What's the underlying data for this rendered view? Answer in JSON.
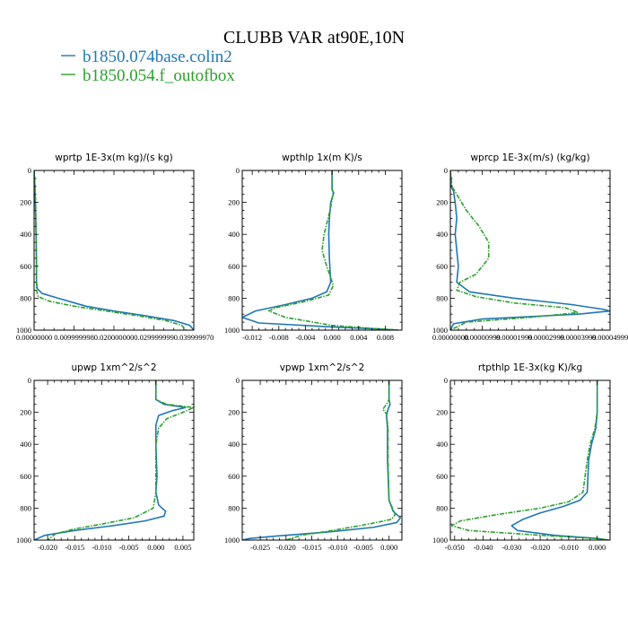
{
  "title": "CLUBB VAR at90E,10N",
  "legend": [
    {
      "label": "b1850.074base.colin2",
      "color": "#1f77b4"
    },
    {
      "label": "b1850.054.f_outofbox",
      "color": "#2ca02c"
    }
  ],
  "chart_data": [
    {
      "type": "line",
      "title": "wprtp   1E-3x(m kg)/(s kg)",
      "xlim": [
        0.0,
        0.04
      ],
      "xticks": [
        0.0,
        0.01,
        0.02,
        0.03,
        0.04
      ],
      "xtick_labels": [
        "0.00000000",
        "0.009999998",
        "0.020000000",
        "0.029999999",
        "0.039999970"
      ],
      "ylim": [
        0,
        1000
      ],
      "yticks": [
        0,
        200,
        400,
        600,
        800,
        1000
      ],
      "y_reversed": true,
      "series": [
        {
          "name": "b1850.074base.colin2",
          "color": "#1f77b4",
          "dashed": false,
          "x": [
            0.0,
            0.0002,
            0.0003,
            0.0005,
            0.0006,
            0.0006,
            0.0008,
            0.002,
            0.006,
            0.013,
            0.02,
            0.028,
            0.035,
            0.039,
            0.04
          ],
          "y": [
            0,
            100,
            200,
            400,
            600,
            700,
            740,
            770,
            800,
            850,
            880,
            910,
            940,
            970,
            1000
          ]
        },
        {
          "name": "b1850.054.f_outofbox",
          "color": "#2ca02c",
          "dashed": true,
          "x": [
            0.0,
            0.0002,
            0.0004,
            0.0005,
            0.0006,
            0.0006,
            0.001,
            0.004,
            0.01,
            0.018,
            0.026,
            0.033,
            0.037,
            0.038
          ],
          "y": [
            0,
            100,
            200,
            400,
            600,
            750,
            790,
            820,
            850,
            880,
            910,
            940,
            970,
            1000
          ]
        }
      ]
    },
    {
      "type": "line",
      "title": "wpthlp   1x(m K)/s",
      "xlim": [
        -0.0135,
        0.0105
      ],
      "xticks": [
        -0.012,
        -0.008,
        -0.004,
        0.0,
        0.004,
        0.008
      ],
      "xtick_labels": [
        "-0.012",
        "-0.008",
        "-0.004",
        "0.000",
        "0.004",
        "0.008"
      ],
      "ylim": [
        0,
        1000
      ],
      "yticks": [
        0,
        200,
        400,
        600,
        800,
        1000
      ],
      "y_reversed": true,
      "series": [
        {
          "name": "b1850.074base.colin2",
          "color": "#1f77b4",
          "dashed": false,
          "x": [
            0.0,
            0.0,
            0.0002,
            0.0001,
            -0.0002,
            -0.0004,
            -0.0005,
            -0.0004,
            -0.0002,
            -0.0008,
            -0.003,
            -0.007,
            -0.0115,
            -0.0135,
            -0.011,
            0.0,
            0.008,
            0.01
          ],
          "y": [
            0,
            120,
            140,
            160,
            200,
            300,
            400,
            550,
            700,
            760,
            800,
            840,
            880,
            920,
            955,
            980,
            995,
            1000
          ]
        },
        {
          "name": "b1850.054.f_outofbox",
          "color": "#2ca02c",
          "dashed": true,
          "x": [
            0.0,
            0.0,
            0.0003,
            0.0001,
            -0.0003,
            -0.0012,
            -0.0015,
            -0.0008,
            0.0002,
            -0.0005,
            -0.004,
            -0.0085,
            -0.0095,
            -0.007,
            0.0,
            0.008,
            0.01
          ],
          "y": [
            0,
            120,
            140,
            160,
            250,
            400,
            500,
            600,
            720,
            780,
            820,
            860,
            880,
            920,
            970,
            995,
            1000
          ]
        }
      ]
    },
    {
      "type": "line",
      "title": "wprcp   1E-3x(m/s) (kg/kg)",
      "xlim": [
        0.0,
        5e-05
      ],
      "xticks": [
        0.0,
        1e-05,
        2e-05,
        3e-05,
        4e-05,
        5e-05
      ],
      "xtick_labels": [
        "0.00000000",
        "0.00000999",
        "0.00001999",
        "0.00002999",
        "0.00003999",
        "0.00004999"
      ],
      "ylim": [
        0,
        1000
      ],
      "yticks": [
        0,
        200,
        400,
        600,
        800,
        1000
      ],
      "y_reversed": true,
      "series": [
        {
          "name": "b1850.074base.colin2",
          "color": "#1f77b4",
          "dashed": false,
          "x": [
            0.0,
            2e-07,
            1e-06,
            1.5e-06,
            2e-06,
            1.5e-06,
            2e-06,
            2.5e-06,
            2e-06,
            6e-06,
            2e-05,
            3.8e-05,
            4.8e-05,
            5e-05,
            4e-05,
            1e-05,
            1e-06,
            0.0
          ],
          "y": [
            0,
            100,
            130,
            200,
            300,
            400,
            500,
            600,
            700,
            760,
            800,
            840,
            870,
            880,
            900,
            930,
            960,
            1000
          ]
        },
        {
          "name": "b1850.054.f_outofbox",
          "color": "#2ca02c",
          "dashed": true,
          "x": [
            0.0,
            5e-07,
            2e-06,
            5e-06,
            9e-06,
            1.2e-05,
            1.2e-05,
            8e-06,
            3e-06,
            2e-06,
            8e-06,
            2e-05,
            3.6e-05,
            4e-05,
            2.5e-05,
            5e-06,
            0.0
          ],
          "y": [
            0,
            100,
            150,
            250,
            350,
            450,
            550,
            650,
            700,
            750,
            790,
            830,
            860,
            890,
            920,
            950,
            1000
          ]
        }
      ]
    },
    {
      "type": "line",
      "title": "upwp   1xm^2/s^2",
      "xlim": [
        -0.0225,
        0.007
      ],
      "xticks": [
        -0.02,
        -0.015,
        -0.01,
        -0.005,
        0.0,
        0.005
      ],
      "xtick_labels": [
        "-0.020",
        "-0.015",
        "-0.010",
        "-0.005",
        "0.000",
        "0.005"
      ],
      "ylim": [
        0,
        1000
      ],
      "yticks": [
        0,
        200,
        400,
        600,
        800,
        1000
      ],
      "y_reversed": true,
      "series": [
        {
          "name": "b1850.074base.colin2",
          "color": "#1f77b4",
          "dashed": false,
          "x": [
            0.0,
            0.0,
            0.0015,
            0.0055,
            0.003,
            0.0005,
            0.0,
            0.0,
            0.0002,
            0.0,
            0.0005,
            0.0018,
            0.0015,
            -0.002,
            -0.008,
            -0.015,
            -0.0205,
            -0.0225
          ],
          "y": [
            0,
            120,
            150,
            170,
            190,
            220,
            280,
            400,
            600,
            700,
            780,
            820,
            850,
            880,
            910,
            940,
            970,
            1000
          ]
        },
        {
          "name": "b1850.054.f_outofbox",
          "color": "#2ca02c",
          "dashed": true,
          "x": [
            0.0,
            0.0,
            0.002,
            0.007,
            0.005,
            0.002,
            0.0005,
            0.0,
            0.0,
            -0.0005,
            -0.004,
            -0.01,
            -0.015,
            -0.0185,
            -0.02
          ],
          "y": [
            0,
            120,
            150,
            170,
            200,
            240,
            300,
            400,
            700,
            800,
            860,
            900,
            930,
            960,
            1000
          ]
        }
      ]
    },
    {
      "type": "line",
      "title": "vpwp   1xm^2/s^2",
      "xlim": [
        -0.0285,
        0.0025
      ],
      "xticks": [
        -0.025,
        -0.02,
        -0.015,
        -0.01,
        -0.005,
        0.0
      ],
      "xtick_labels": [
        "-0.025",
        "-0.020",
        "-0.015",
        "-0.010",
        "-0.005",
        "0.000"
      ],
      "ylim": [
        0,
        1000
      ],
      "yticks": [
        0,
        200,
        400,
        600,
        800,
        1000
      ],
      "y_reversed": true,
      "series": [
        {
          "name": "b1850.074base.colin2",
          "color": "#1f77b4",
          "dashed": false,
          "x": [
            0.0,
            0.0,
            0.0002,
            -0.0002,
            -0.0005,
            -0.0003,
            -0.0003,
            0.0,
            0.0008,
            0.0022,
            0.0015,
            -0.003,
            -0.012,
            -0.022,
            -0.027,
            -0.0285
          ],
          "y": [
            0,
            120,
            150,
            180,
            220,
            300,
            500,
            750,
            820,
            860,
            890,
            920,
            950,
            975,
            990,
            1000
          ]
        },
        {
          "name": "b1850.054.f_outofbox",
          "color": "#2ca02c",
          "dashed": true,
          "x": [
            0.0,
            0.0,
            -0.0005,
            -0.0012,
            -0.0005,
            -0.0002,
            -0.0002,
            0.0,
            0.0012,
            0.0005,
            -0.004,
            -0.011,
            -0.017,
            -0.02
          ],
          "y": [
            0,
            120,
            150,
            180,
            210,
            300,
            500,
            750,
            840,
            870,
            900,
            940,
            970,
            1000
          ]
        }
      ]
    },
    {
      "type": "line",
      "title": "rtpthlp   1E-3x(kg K)/kg",
      "xlim": [
        -0.0515,
        0.0045
      ],
      "xticks": [
        -0.05,
        -0.04,
        -0.03,
        -0.02,
        -0.01,
        0.0
      ],
      "xtick_labels": [
        "-0.050",
        "-0.040",
        "-0.030",
        "-0.020",
        "-0.010",
        "0.000"
      ],
      "ylim": [
        0,
        1000
      ],
      "yticks": [
        0,
        200,
        400,
        600,
        800,
        1000
      ],
      "y_reversed": true,
      "series": [
        {
          "name": "b1850.074base.colin2",
          "color": "#1f77b4",
          "dashed": false,
          "x": [
            0.0,
            0.0,
            -0.0005,
            -0.002,
            -0.003,
            -0.0035,
            -0.006,
            -0.012,
            -0.02,
            -0.026,
            -0.03,
            -0.028,
            -0.015,
            0.0,
            0.004
          ],
          "y": [
            0,
            200,
            300,
            400,
            500,
            700,
            750,
            790,
            830,
            870,
            910,
            940,
            970,
            990,
            1000
          ]
        },
        {
          "name": "b1850.054.f_outofbox",
          "color": "#2ca02c",
          "dashed": true,
          "x": [
            0.0,
            0.0,
            -0.0008,
            -0.0025,
            -0.0035,
            -0.005,
            -0.01,
            -0.02,
            -0.035,
            -0.048,
            -0.051,
            -0.045,
            -0.02,
            0.0,
            0.004
          ],
          "y": [
            0,
            200,
            300,
            400,
            500,
            700,
            760,
            800,
            840,
            880,
            910,
            940,
            970,
            990,
            1000
          ]
        }
      ]
    }
  ]
}
